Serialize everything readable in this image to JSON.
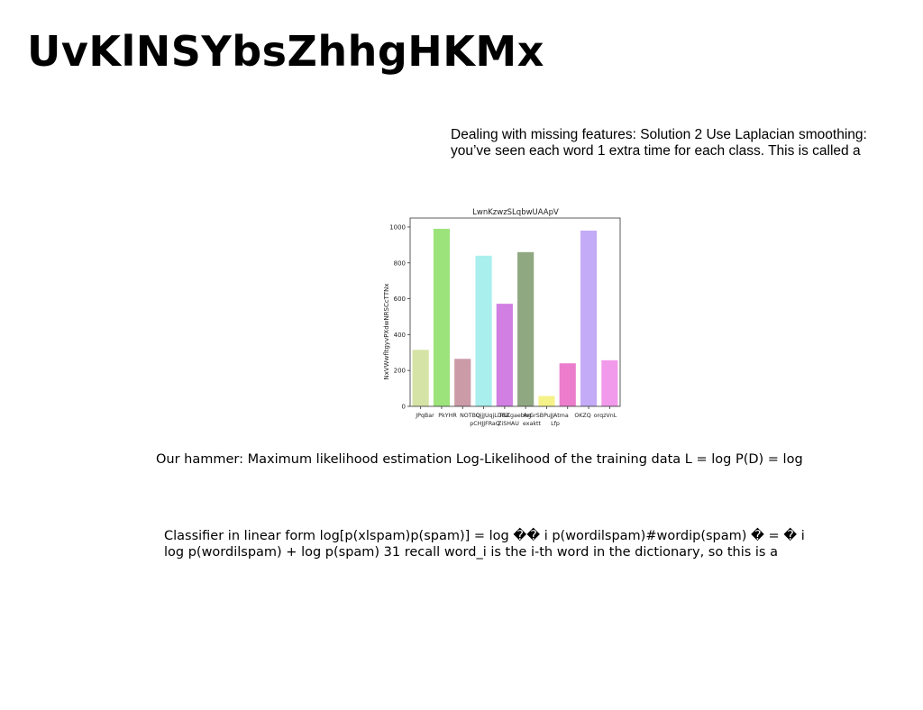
{
  "slide": {
    "title": "UvKlNSYbsZhhgHKMx",
    "blocks": [
      "Dealing with missing features: Solution 2 Use Laplacian smoothing: you’ve seen each word 1 extra time for each class. This is called a",
      "Our hammer: Maximum likelihood estimation Log-Likelihood of the training data L = log P(D) = log",
      "Classifier in linear form log[p(xlspam)p(spam)] = log �� i p(wordilspam)#wordip(spam) � = � i log p(wordilspam) + log p(spam) 31 recall word_i is the i-th word in the dictionary, so this is a"
    ]
  },
  "chart_data": {
    "type": "bar",
    "title": "LwnKzwzSLqbwUAApV",
    "xlabel": "",
    "ylabel": "NxVWwfltgyvPXdwNRSCcTTNx",
    "categories": [
      "JPqBar",
      "PkYHR",
      "NOTBQ",
      "pCHJJFRaQ",
      "QjjJUqjLDRZ",
      "ZiSHAU",
      "TGKgaebhg",
      "exaktt",
      "ArGrSBPuJ",
      "Lfp",
      "JAtma",
      "OKZQ",
      "orqzVnL"
    ],
    "tick_labels_row1": [
      "JPqBar",
      "PkYHR",
      "NOTBQ",
      "QjjJUqjLDRZ",
      "TGKgaebhg",
      "ArGrSBPuJ",
      "JAtma",
      "OKZQ",
      "orqzVnL"
    ],
    "tick_labels_row2": [
      "pCHJJFRaQ",
      "ZiSHAU",
      "exaktt",
      "Lfp"
    ],
    "bars": [
      {
        "label": "JPqBar",
        "value": 315,
        "color": "#d6e3a6"
      },
      {
        "label": "PkYHR",
        "value": 990,
        "color": "#9de37c"
      },
      {
        "label": "NOTBQ",
        "value": 265,
        "color": "#cc9ba8"
      },
      {
        "label": "QjjJUqjLDRZ",
        "value": 840,
        "color": "#a8efee"
      },
      {
        "label": "ZiSHAU",
        "value": 572,
        "color": "#d17fe3"
      },
      {
        "label": "TGKgaebhg",
        "value": 860,
        "color": "#90a882"
      },
      {
        "label": "ArGrSBPuJ",
        "value": 58,
        "color": "#f6f28a"
      },
      {
        "label": "JAtma",
        "value": 240,
        "color": "#ec7dcc"
      },
      {
        "label": "OKZQ",
        "value": 980,
        "color": "#c4abf7"
      },
      {
        "label": "orqzVnL",
        "value": 257,
        "color": "#f19aeb"
      }
    ],
    "yticks": [
      0,
      200,
      400,
      600,
      800,
      1000
    ],
    "ylim": [
      0,
      1050
    ],
    "grid": false,
    "legend": "none"
  }
}
